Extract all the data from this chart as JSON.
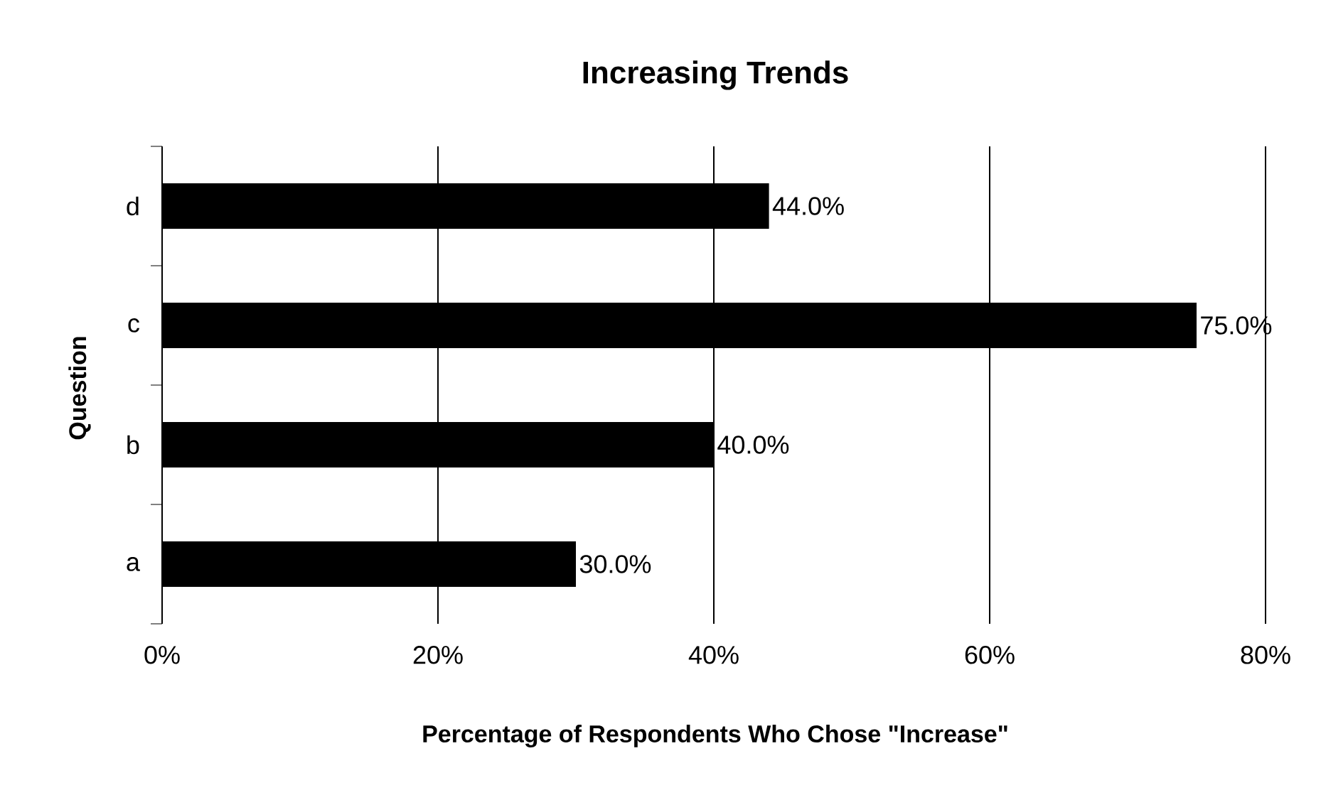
{
  "chart_data": {
    "type": "bar",
    "orientation": "horizontal",
    "title": "Increasing Trends",
    "xlabel": "Percentage of Respondents Who Chose \"Increase\"",
    "ylabel": "Question",
    "categories": [
      "d",
      "c",
      "b",
      "a"
    ],
    "values": [
      44,
      75,
      40,
      30
    ],
    "value_labels": [
      "44.0%",
      "75.0%",
      "40.0%",
      "30.0%"
    ],
    "color": "#000000",
    "xlim": [
      0,
      80
    ],
    "xticks": [
      {
        "value": 0,
        "label": "0%"
      },
      {
        "value": 20,
        "label": "20%"
      },
      {
        "value": 40,
        "label": "40%"
      },
      {
        "value": 60,
        "label": "60%"
      },
      {
        "value": 80,
        "label": "80%"
      }
    ],
    "grid": "x"
  }
}
